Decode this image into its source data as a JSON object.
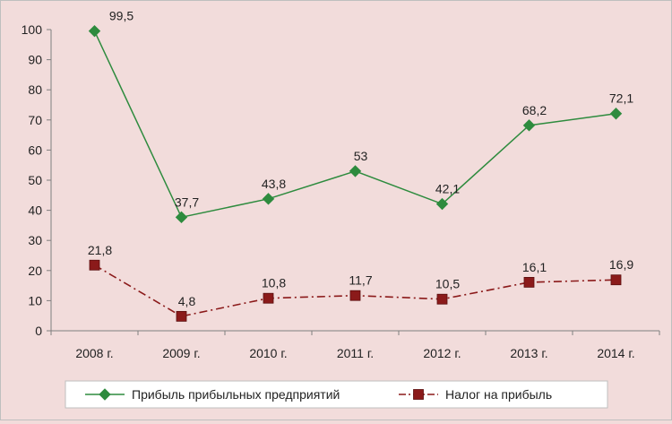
{
  "chart_data": {
    "type": "line",
    "categories": [
      "2008 г.",
      "2009 г.",
      "2010 г.",
      "2011 г.",
      "2012 г.",
      "2013 г.",
      "2014 г."
    ],
    "series": [
      {
        "name": "Прибыль прибыльных предприятий",
        "values": [
          99.5,
          37.7,
          43.8,
          53,
          42.1,
          68.2,
          72.1
        ],
        "labels": [
          "99,5",
          "37,7",
          "43,8",
          "53",
          "42,1",
          "68,2",
          "72,1"
        ],
        "color": "#2e8b3e",
        "marker": "diamond",
        "line_style": "solid"
      },
      {
        "name": "Налог на прибыль",
        "values": [
          21.8,
          4.8,
          10.8,
          11.7,
          10.5,
          16.1,
          16.9
        ],
        "labels": [
          "21,8",
          "4,8",
          "10,8",
          "11,7",
          "10,5",
          "16,1",
          "16,9"
        ],
        "color": "#8b1a1a",
        "marker": "square",
        "line_style": "dash-dot"
      }
    ],
    "y_ticks": [
      "0",
      "10",
      "20",
      "30",
      "40",
      "50",
      "60",
      "70",
      "80",
      "90",
      "100"
    ],
    "ylim": [
      0,
      100
    ],
    "grid": false,
    "legend_position": "bottom"
  }
}
